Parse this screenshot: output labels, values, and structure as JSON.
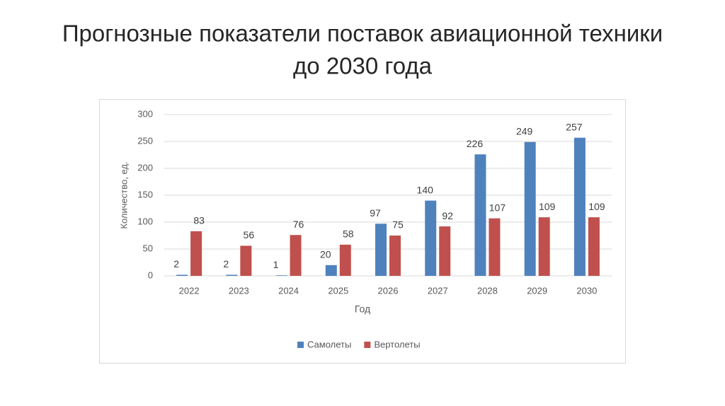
{
  "chart_data": {
    "type": "bar",
    "title": [
      "Прогнозные показатели поставок авиационной техники",
      "до 2030 года"
    ],
    "x_label": "Год",
    "y_label": "Количество, ед.",
    "categories": [
      "2022",
      "2023",
      "2024",
      "2025",
      "2026",
      "2027",
      "2028",
      "2029",
      "2030"
    ],
    "series": [
      {
        "name": "Самолеты",
        "color": "#4f81bd",
        "values": [
          2,
          2,
          1,
          20,
          97,
          140,
          226,
          249,
          257
        ]
      },
      {
        "name": "Вертолеты",
        "color": "#c0504d",
        "values": [
          83,
          56,
          76,
          58,
          75,
          92,
          107,
          109,
          109
        ]
      }
    ],
    "ylim": [
      0,
      300
    ],
    "yticks": [
      0,
      50,
      100,
      150,
      200,
      250,
      300
    ],
    "grid": true,
    "legend": "bottom"
  }
}
